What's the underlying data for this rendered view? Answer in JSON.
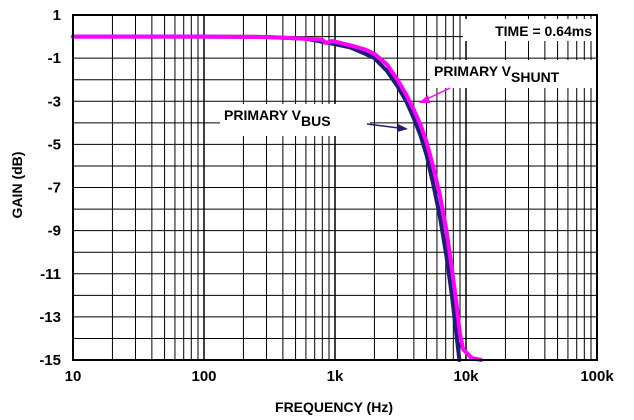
{
  "chart_data": {
    "type": "line",
    "xlabel": "FREQUENCY (Hz)",
    "ylabel": "GAIN (dB)",
    "x_scale": "log",
    "xlim": [
      10,
      100000
    ],
    "ylim": [
      -15,
      1
    ],
    "grid": true,
    "x_ticks": [
      {
        "value": 10,
        "label": "10"
      },
      {
        "value": 100,
        "label": "100"
      },
      {
        "value": 1000,
        "label": "1k"
      },
      {
        "value": 10000,
        "label": "10k"
      },
      {
        "value": 100000,
        "label": "100k"
      }
    ],
    "y_ticks": [
      {
        "value": 1,
        "label": "1"
      },
      {
        "value": -1,
        "label": "-1"
      },
      {
        "value": -3,
        "label": "-3"
      },
      {
        "value": -5,
        "label": "-5"
      },
      {
        "value": -7,
        "label": "-7"
      },
      {
        "value": -9,
        "label": "-9"
      },
      {
        "value": -11,
        "label": "-11"
      },
      {
        "value": -13,
        "label": "-13"
      },
      {
        "value": -15,
        "label": "-15"
      }
    ],
    "series": [
      {
        "name": "PRIMARY VBUS",
        "label_main": "PRIMARY V",
        "label_sub": "BUS",
        "color": "#1e1e78",
        "points": [
          [
            10,
            0.0
          ],
          [
            100,
            0.0
          ],
          [
            300,
            -0.02
          ],
          [
            600,
            -0.1
          ],
          [
            900,
            -0.3
          ],
          [
            1300,
            -0.5
          ],
          [
            1700,
            -0.8
          ],
          [
            2000,
            -1.0
          ],
          [
            2500,
            -1.6
          ],
          [
            3000,
            -2.3
          ],
          [
            3500,
            -3.0
          ],
          [
            4000,
            -3.8
          ],
          [
            4500,
            -4.6
          ],
          [
            5000,
            -5.5
          ],
          [
            5600,
            -6.8
          ],
          [
            6300,
            -8.3
          ],
          [
            7100,
            -10.2
          ],
          [
            7800,
            -12.0
          ],
          [
            8400,
            -13.7
          ],
          [
            8900,
            -15.0
          ]
        ]
      },
      {
        "name": "PRIMARY VSHUNT",
        "label_main": "PRIMARY V",
        "label_sub": "SHUNT",
        "color": "#ff00ff",
        "points": [
          [
            10,
            0.0
          ],
          [
            100,
            0.0
          ],
          [
            300,
            -0.02
          ],
          [
            600,
            -0.1
          ],
          [
            800,
            -0.15
          ],
          [
            850,
            -0.3
          ],
          [
            950,
            -0.2
          ],
          [
            1300,
            -0.4
          ],
          [
            1700,
            -0.6
          ],
          [
            2000,
            -0.8
          ],
          [
            2500,
            -1.3
          ],
          [
            3000,
            -2.0
          ],
          [
            3500,
            -2.7
          ],
          [
            4000,
            -3.4
          ],
          [
            4500,
            -4.1
          ],
          [
            5000,
            -4.9
          ],
          [
            5600,
            -6.0
          ],
          [
            6300,
            -7.3
          ],
          [
            7100,
            -9.0
          ],
          [
            7900,
            -11.0
          ],
          [
            8500,
            -12.5
          ],
          [
            9000,
            -13.8
          ],
          [
            9500,
            -14.5
          ],
          [
            11000,
            -14.9
          ],
          [
            13000,
            -15.0
          ]
        ]
      }
    ],
    "annotations": [
      {
        "text": "TIME = 0.64ms",
        "position": "top-right"
      }
    ]
  }
}
